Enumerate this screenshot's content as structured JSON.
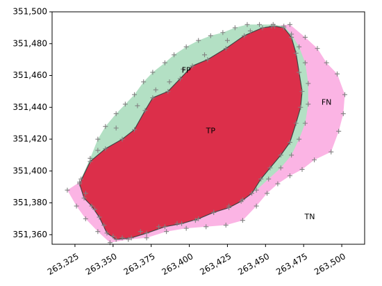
{
  "chart_data": {
    "type": "area",
    "title": "",
    "xlabel": "",
    "ylabel": "",
    "xlim": [
      263310,
      263515
    ],
    "ylim": [
      351354,
      351500
    ],
    "x_ticks": [
      263325,
      263350,
      263375,
      263400,
      263425,
      263450,
      263475,
      263500
    ],
    "y_ticks": [
      351360,
      351380,
      351400,
      351420,
      351440,
      351460,
      351480,
      351500
    ],
    "x_tick_labels": [
      "263,325",
      "263,350",
      "263,375",
      "263,400",
      "263,425",
      "263,450",
      "263,475",
      "263,500"
    ],
    "y_tick_labels": [
      "351,360",
      "351,380",
      "351,400",
      "351,420",
      "351,440",
      "351,460",
      "351,480",
      "351,500"
    ],
    "grid": false,
    "series": [
      {
        "name": "",
        "role": "predicted",
        "color": "#b3e0c4",
        "points": [
          [
            263329,
            351395
          ],
          [
            263335,
            351408
          ],
          [
            263340,
            351420
          ],
          [
            263345,
            351428
          ],
          [
            263352,
            351436
          ],
          [
            263358,
            351442
          ],
          [
            263364,
            351448
          ],
          [
            263370,
            351456
          ],
          [
            263376,
            351462
          ],
          [
            263384,
            351468
          ],
          [
            263390,
            351473
          ],
          [
            263398,
            351478
          ],
          [
            263406,
            351482
          ],
          [
            263414,
            351485
          ],
          [
            263422,
            351487
          ],
          [
            263430,
            351490
          ],
          [
            263438,
            351492
          ],
          [
            263446,
            351492
          ],
          [
            263455,
            351492
          ],
          [
            263462,
            351491
          ],
          [
            263467,
            351486
          ],
          [
            263472,
            351478
          ],
          [
            263476,
            351468
          ],
          [
            263478,
            351455
          ],
          [
            263478,
            351442
          ],
          [
            263476,
            351430
          ],
          [
            263472,
            351420
          ],
          [
            263467,
            351410
          ],
          [
            263460,
            351402
          ],
          [
            263452,
            351395
          ],
          [
            263444,
            351388
          ],
          [
            263435,
            351382
          ],
          [
            263426,
            351378
          ],
          [
            263416,
            351374
          ],
          [
            263404,
            351369
          ],
          [
            263392,
            351367
          ],
          [
            263380,
            351365
          ],
          [
            263368,
            351362
          ],
          [
            263356,
            351358
          ],
          [
            263350,
            351359
          ],
          [
            263344,
            351366
          ],
          [
            263338,
            351376
          ],
          [
            263332,
            351386
          ]
        ]
      },
      {
        "name": "",
        "role": "ground-truth",
        "color": "#fbb4e4",
        "points": [
          [
            263328,
            351393
          ],
          [
            263340,
            351413
          ],
          [
            263352,
            351427
          ],
          [
            263366,
            351441
          ],
          [
            263378,
            351451
          ],
          [
            263387,
            351456
          ],
          [
            263396,
            351464
          ],
          [
            263410,
            351473
          ],
          [
            263425,
            351482
          ],
          [
            263440,
            351488
          ],
          [
            263454,
            351491
          ],
          [
            263466,
            351492
          ],
          [
            263476,
            351484
          ],
          [
            263484,
            351477
          ],
          [
            263490,
            351468
          ],
          [
            263497,
            351461
          ],
          [
            263502,
            351448
          ],
          [
            263501,
            351436
          ],
          [
            263498,
            351425
          ],
          [
            263493,
            351412
          ],
          [
            263482,
            351407
          ],
          [
            263474,
            351401
          ],
          [
            263466,
            351397
          ],
          [
            263458,
            351392
          ],
          [
            263451,
            351386
          ],
          [
            263444,
            351378
          ],
          [
            263435,
            351369
          ],
          [
            263424,
            351366
          ],
          [
            263411,
            351365
          ],
          [
            263398,
            351364
          ],
          [
            263385,
            351362
          ],
          [
            263372,
            351358
          ],
          [
            263360,
            351357
          ],
          [
            263348,
            351355
          ],
          [
            263340,
            351362
          ],
          [
            263332,
            351370
          ],
          [
            263326,
            351378
          ],
          [
            263320,
            351388
          ]
        ]
      },
      {
        "name": "",
        "role": "true-positive",
        "color": "#dc2f4a",
        "points": [
          [
            263328,
            351392
          ],
          [
            263335,
            351406
          ],
          [
            263345,
            351414
          ],
          [
            263356,
            351420
          ],
          [
            263364,
            351426
          ],
          [
            263371,
            351438
          ],
          [
            263376,
            351446
          ],
          [
            263386,
            351450
          ],
          [
            263394,
            351458
          ],
          [
            263402,
            351466
          ],
          [
            263412,
            351470
          ],
          [
            263424,
            351477
          ],
          [
            263436,
            351485
          ],
          [
            263448,
            351490
          ],
          [
            263456,
            351491
          ],
          [
            263462,
            351490
          ],
          [
            263467,
            351484
          ],
          [
            263470,
            351474
          ],
          [
            263472,
            351462
          ],
          [
            263474,
            351450
          ],
          [
            263473,
            351440
          ],
          [
            263470,
            351430
          ],
          [
            263466,
            351418
          ],
          [
            263460,
            351410
          ],
          [
            263453,
            351402
          ],
          [
            263447,
            351395
          ],
          [
            263441,
            351386
          ],
          [
            263434,
            351381
          ],
          [
            263426,
            351377
          ],
          [
            263416,
            351374
          ],
          [
            263406,
            351370
          ],
          [
            263395,
            351367
          ],
          [
            263384,
            351365
          ],
          [
            263372,
            351361
          ],
          [
            263362,
            351358
          ],
          [
            263352,
            351357
          ],
          [
            263346,
            351361
          ],
          [
            263341,
            351371
          ],
          [
            263336,
            351378
          ],
          [
            263331,
            351383
          ]
        ]
      }
    ],
    "annotations": [
      {
        "text": "FP",
        "x": 263398,
        "y": 351463
      },
      {
        "text": "FN",
        "x": 263490,
        "y": 351443
      },
      {
        "text": "TP",
        "x": 263414,
        "y": 351425
      },
      {
        "text": "TN",
        "x": 263479,
        "y": 351371
      }
    ],
    "marker": "+",
    "marker_color": "#808080",
    "edge_color": "#444444"
  }
}
